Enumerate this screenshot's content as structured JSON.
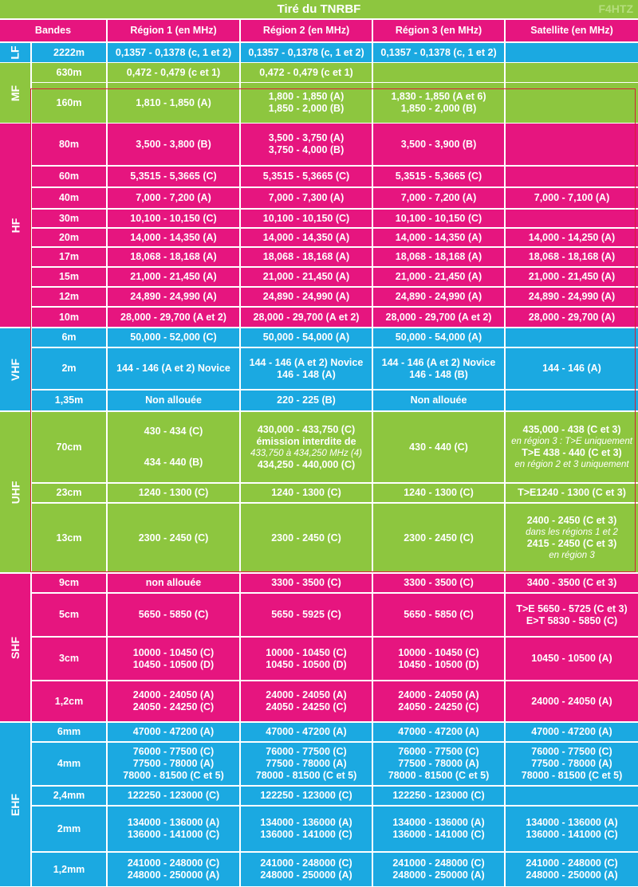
{
  "title": "Tiré du TNRBF",
  "watermark": "F4HTZ",
  "colors": {
    "magenta": "#e6157f",
    "blue": "#1ba9e1",
    "green": "#8dc63f",
    "frame": "#d6203a"
  },
  "columns": [
    "Bandes",
    "Région 1 (en MHz)",
    "Région 2 (en MHz)",
    "Région 3  (en MHz)",
    "Satellite  (en MHz)"
  ],
  "groups": [
    {
      "label": "LF",
      "color": "blue"
    },
    {
      "label": "MF",
      "color": "green"
    },
    {
      "label": "HF",
      "color": "magenta"
    },
    {
      "label": "VHF",
      "color": "blue"
    },
    {
      "label": "UHF",
      "color": "green"
    },
    {
      "label": "SHF",
      "color": "magenta"
    },
    {
      "label": "EHF",
      "color": "blue"
    }
  ],
  "rows": [
    {
      "band": "2222m",
      "r1": [
        [
          "0,1357 - 0,1378 (c, 1 et 2)"
        ]
      ],
      "r2": [
        [
          "0,1357 - 0,1378 (c, 1 et 2)"
        ]
      ],
      "r3": [
        [
          "0,1357 - 0,1378 (c, 1 et 2)"
        ]
      ],
      "sat": []
    },
    {
      "band": "630m",
      "r1": [
        [
          "0,472 - 0,479 (c et 1)"
        ]
      ],
      "r2": [
        [
          "0,472 - 0,479 (c et 1)"
        ]
      ],
      "r3": [],
      "sat": []
    },
    {
      "band": "160m",
      "r1": [
        [
          "1,810 - 1,850 (A)"
        ]
      ],
      "r2": [
        [
          "1,800 - 1,850 (A)"
        ],
        [
          "1,850 - 2,000 (B)"
        ]
      ],
      "r3": [
        [
          "1,830 - 1,850 (A et 6)"
        ],
        [
          "1,850 - 2,000 (B)"
        ]
      ],
      "sat": []
    },
    {
      "band": "80m",
      "r1": [
        [
          "3,500 - 3,800 (B)"
        ]
      ],
      "r2": [
        [
          "3,500 - 3,750 (A)"
        ],
        [
          "3,750 - 4,000 (B)"
        ]
      ],
      "r3": [
        [
          "3,500 - 3,900 (B)"
        ]
      ],
      "sat": []
    },
    {
      "band": "60m",
      "r1": [
        [
          "5,3515 - 5,3665 (C)"
        ]
      ],
      "r2": [
        [
          "5,3515 - 5,3665 (C)"
        ]
      ],
      "r3": [
        [
          "5,3515 - 5,3665 (C)"
        ]
      ],
      "sat": []
    },
    {
      "band": "40m",
      "r1": [
        [
          "7,000 - 7,200 (A)"
        ]
      ],
      "r2": [
        [
          "7,000 - 7,300 (A)"
        ]
      ],
      "r3": [
        [
          "7,000 - 7,200 (A)"
        ]
      ],
      "sat": [
        [
          "7,000 - 7,100 (A)"
        ]
      ]
    },
    {
      "band": "30m",
      "r1": [
        [
          "10,100 - 10,150 (C)"
        ]
      ],
      "r2": [
        [
          "10,100 - 10,150 (C)"
        ]
      ],
      "r3": [
        [
          "10,100 - 10,150 (C)"
        ]
      ],
      "sat": []
    },
    {
      "band": "20m",
      "r1": [
        [
          "14,000 - 14,350 (A)"
        ]
      ],
      "r2": [
        [
          "14,000 - 14,350 (A)"
        ]
      ],
      "r3": [
        [
          "14,000 - 14,350 (A)"
        ]
      ],
      "sat": [
        [
          "14,000 - 14,250 (A)"
        ]
      ]
    },
    {
      "band": "17m",
      "r1": [
        [
          "18,068 - 18,168 (A)"
        ]
      ],
      "r2": [
        [
          "18,068 - 18,168 (A)"
        ]
      ],
      "r3": [
        [
          "18,068 - 18,168 (A)"
        ]
      ],
      "sat": [
        [
          "18,068 - 18,168 (A)"
        ]
      ]
    },
    {
      "band": "15m",
      "r1": [
        [
          "21,000 - 21,450 (A)"
        ]
      ],
      "r2": [
        [
          "21,000 - 21,450 (A)"
        ]
      ],
      "r3": [
        [
          "21,000 - 21,450 (A)"
        ]
      ],
      "sat": [
        [
          "21,000 - 21,450 (A)"
        ]
      ]
    },
    {
      "band": "12m",
      "r1": [
        [
          "24,890 - 24,990 (A)"
        ]
      ],
      "r2": [
        [
          "24,890 - 24,990 (A)"
        ]
      ],
      "r3": [
        [
          "24,890 - 24,990 (A)"
        ]
      ],
      "sat": [
        [
          "24,890 - 24,990 (A)"
        ]
      ]
    },
    {
      "band": "10m",
      "r1": [
        [
          "28,000 - 29,700 (A et 2)"
        ]
      ],
      "r2": [
        [
          "28,000 - 29,700 (A et 2)"
        ]
      ],
      "r3": [
        [
          "28,000 - 29,700 (A et 2)"
        ]
      ],
      "sat": [
        [
          "28,000 - 29,700 (A)"
        ]
      ]
    },
    {
      "band": "6m",
      "r1": [
        [
          "50,000 - 52,000 (C)"
        ]
      ],
      "r2": [
        [
          "50,000 - 54,000 (A)"
        ]
      ],
      "r3": [
        [
          "50,000 - 54,000 (A)"
        ]
      ],
      "sat": []
    },
    {
      "band": "2m",
      "r1": [
        [
          "144 - 146 (A et 2) Novice"
        ]
      ],
      "r2": [
        [
          "144 - 146 (A et 2) Novice"
        ],
        [
          "146 - 148 (A)"
        ]
      ],
      "r3": [
        [
          "144 - 146 (A et 2) Novice"
        ],
        [
          "146 - 148 (B)"
        ]
      ],
      "sat": [
        [
          "144 - 146 (A)"
        ]
      ]
    },
    {
      "band": "1,35m",
      "r1": [
        [
          "Non allouée"
        ]
      ],
      "r2": [
        [
          "220 - 225 (B)"
        ]
      ],
      "r3": [
        [
          "Non allouée"
        ]
      ],
      "sat": []
    },
    {
      "band": "70cm",
      "r1": [
        [
          "430 - 434 (C)"
        ],
        [
          "",
          "sp"
        ],
        [
          "",
          "sp"
        ],
        [
          "434 - 440 (B)"
        ]
      ],
      "r2": [
        [
          "430,000 - 433,750 (C)"
        ],
        [
          "émission interdite de"
        ],
        [
          "433,750 à 434,250 MHz (4)",
          "it"
        ],
        [
          "434,250 - 440,000 (C)"
        ]
      ],
      "r3": [
        [
          "430 - 440 (C)"
        ]
      ],
      "sat": [
        [
          "435,000 - 438 (C et 3)"
        ],
        [
          "en région 3 : T>E uniquement",
          "it"
        ],
        [
          "T>E 438 - 440 (C et 3)"
        ],
        [
          "en région 2 et 3 uniquement",
          "it"
        ]
      ]
    },
    {
      "band": "23cm",
      "r1": [
        [
          "1240 - 1300 (C)"
        ]
      ],
      "r2": [
        [
          "1240 - 1300 (C)"
        ]
      ],
      "r3": [
        [
          "1240 - 1300 (C)"
        ]
      ],
      "sat": [
        [
          "T>E1240 - 1300 (C et 3)"
        ]
      ]
    },
    {
      "band": "13cm",
      "r1": [
        [
          "2300 - 2450 (C)"
        ]
      ],
      "r2": [
        [
          "2300 - 2450 (C)"
        ]
      ],
      "r3": [
        [
          "2300 - 2450 (C)"
        ]
      ],
      "sat": [
        [
          "2400 - 2450 (C et 3)"
        ],
        [
          "dans les régions 1 et 2",
          "it"
        ],
        [
          "2415 - 2450 (C et 3)"
        ],
        [
          "en région 3",
          "it"
        ]
      ]
    },
    {
      "band": "9cm",
      "r1": [
        [
          "non allouée"
        ]
      ],
      "r2": [
        [
          "3300 - 3500 (C)"
        ]
      ],
      "r3": [
        [
          "3300 - 3500 (C)"
        ]
      ],
      "sat": [
        [
          "3400 - 3500 (C et 3)"
        ]
      ]
    },
    {
      "band": "5cm",
      "r1": [
        [
          "5650 - 5850 (C)"
        ]
      ],
      "r2": [
        [
          "5650 - 5925 (C)"
        ]
      ],
      "r3": [
        [
          "5650 - 5850 (C)"
        ]
      ],
      "sat": [
        [
          "T>E 5650 - 5725 (C et 3)"
        ],
        [
          "E>T 5830 - 5850 (C)"
        ]
      ]
    },
    {
      "band": "3cm",
      "r1": [
        [
          "10000 - 10450 (C)"
        ],
        [
          "10450 - 10500 (D)"
        ]
      ],
      "r2": [
        [
          "10000 - 10450 (C)"
        ],
        [
          "10450 - 10500 (D)"
        ]
      ],
      "r3": [
        [
          "10000 - 10450 (C)"
        ],
        [
          "10450 - 10500 (D)"
        ]
      ],
      "sat": [
        [
          "10450 - 10500 (A)"
        ]
      ]
    },
    {
      "band": "1,2cm",
      "r1": [
        [
          "24000 - 24050 (A)"
        ],
        [
          "24050 - 24250 (C)"
        ]
      ],
      "r2": [
        [
          "24000 - 24050 (A)"
        ],
        [
          "24050 - 24250 (C)"
        ]
      ],
      "r3": [
        [
          "24000 - 24050 (A)"
        ],
        [
          "24050 - 24250 (C)"
        ]
      ],
      "sat": [
        [
          "24000 - 24050 (A)"
        ]
      ]
    },
    {
      "band": "6mm",
      "r1": [
        [
          "47000 - 47200 (A)"
        ]
      ],
      "r2": [
        [
          "47000 - 47200 (A)"
        ]
      ],
      "r3": [
        [
          "47000 - 47200 (A)"
        ]
      ],
      "sat": [
        [
          "47000 - 47200 (A)"
        ]
      ]
    },
    {
      "band": "4mm",
      "r1": [
        [
          "76000 - 77500 (C)"
        ],
        [
          "77500 - 78000 (A)"
        ],
        [
          "78000 - 81500 (C et 5)"
        ]
      ],
      "r2": [
        [
          "76000 - 77500 (C)"
        ],
        [
          "77500 - 78000 (A)"
        ],
        [
          "78000 - 81500 (C et 5)"
        ]
      ],
      "r3": [
        [
          "76000 - 77500 (C)"
        ],
        [
          "77500 - 78000 (A)"
        ],
        [
          "78000 - 81500 (C et 5)"
        ]
      ],
      "sat": [
        [
          "76000 - 77500 (C)"
        ],
        [
          "77500 - 78000 (A)"
        ],
        [
          "78000 - 81500 (C et 5)"
        ]
      ]
    },
    {
      "band": "2,4mm",
      "r1": [
        [
          "122250 - 123000 (C)"
        ]
      ],
      "r2": [
        [
          "122250 - 123000 (C)"
        ]
      ],
      "r3": [
        [
          "122250 - 123000 (C)"
        ]
      ],
      "sat": []
    },
    {
      "band": "2mm",
      "r1": [
        [
          "134000 - 136000 (A)"
        ],
        [
          "136000 - 141000 (C)"
        ]
      ],
      "r2": [
        [
          "134000 - 136000 (A)"
        ],
        [
          "136000 - 141000 (C)"
        ]
      ],
      "r3": [
        [
          "134000 - 136000 (A)"
        ],
        [
          "136000 - 141000 (C)"
        ]
      ],
      "sat": [
        [
          "134000 - 136000 (A)"
        ],
        [
          "136000 - 141000 (C)"
        ]
      ]
    },
    {
      "band": "1,2mm",
      "r1": [
        [
          "241000 - 248000 (C)"
        ],
        [
          "248000 - 250000 (A)"
        ]
      ],
      "r2": [
        [
          "241000 - 248000 (C)"
        ],
        [
          "248000 - 250000 (A)"
        ]
      ],
      "r3": [
        [
          "241000 - 248000 (C)"
        ],
        [
          "248000 - 250000 (A)"
        ]
      ],
      "sat": [
        [
          "241000 - 248000 (C)"
        ],
        [
          "248000 - 250000 (A)"
        ]
      ]
    }
  ]
}
